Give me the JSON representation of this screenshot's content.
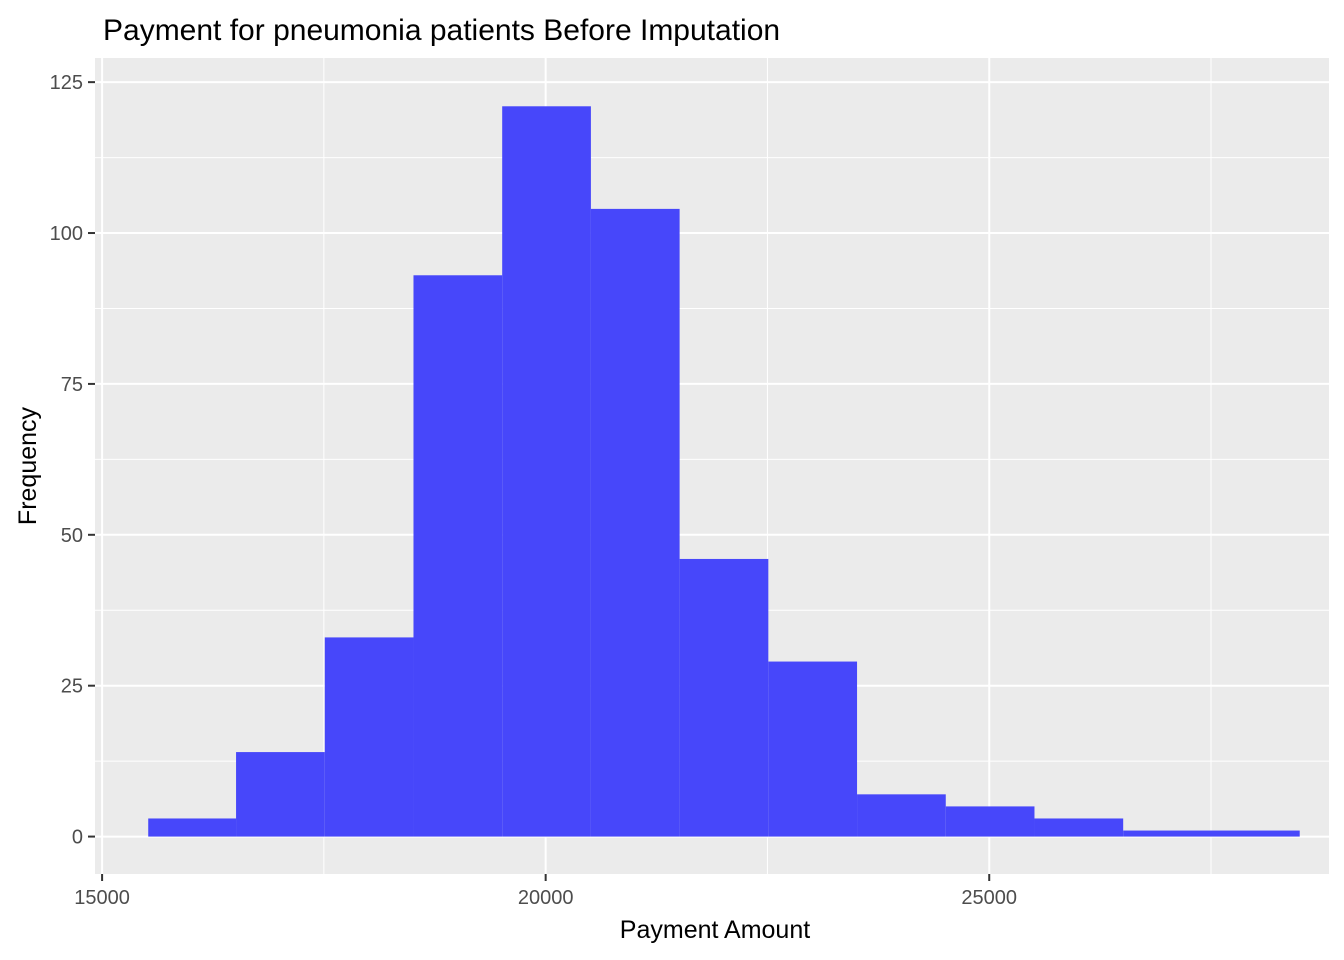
{
  "chart_data": {
    "type": "bar",
    "subtype": "histogram",
    "title": "Payment for pneumonia patients Before Imputation",
    "xlabel": "Payment Amount",
    "ylabel": "Frequency",
    "xlim": [
      14920,
      28830
    ],
    "ylim": [
      -6.2,
      129
    ],
    "xticks": [
      15000,
      20000,
      25000
    ],
    "yticks": [
      0,
      25,
      50,
      75,
      100,
      125
    ],
    "bins": [
      {
        "x0": 15520,
        "x1": 16510,
        "count": 3
      },
      {
        "x0": 16510,
        "x1": 17510,
        "count": 14
      },
      {
        "x0": 17510,
        "x1": 18510,
        "count": 33
      },
      {
        "x0": 18510,
        "x1": 19510,
        "count": 93
      },
      {
        "x0": 19510,
        "x1": 20510,
        "count": 121
      },
      {
        "x0": 20510,
        "x1": 21510,
        "count": 104
      },
      {
        "x0": 21510,
        "x1": 22510,
        "count": 46
      },
      {
        "x0": 22510,
        "x1": 23510,
        "count": 29
      },
      {
        "x0": 23510,
        "x1": 24510,
        "count": 7
      },
      {
        "x0": 24510,
        "x1": 25510,
        "count": 5
      },
      {
        "x0": 25510,
        "x1": 26510,
        "count": 3
      },
      {
        "x0": 26510,
        "x1": 28500,
        "count": 1
      }
    ],
    "bar_color": "#4747fa",
    "panel_background": "#ebebeb",
    "grid_color": "#ffffff",
    "grid": true,
    "legend": "none"
  }
}
